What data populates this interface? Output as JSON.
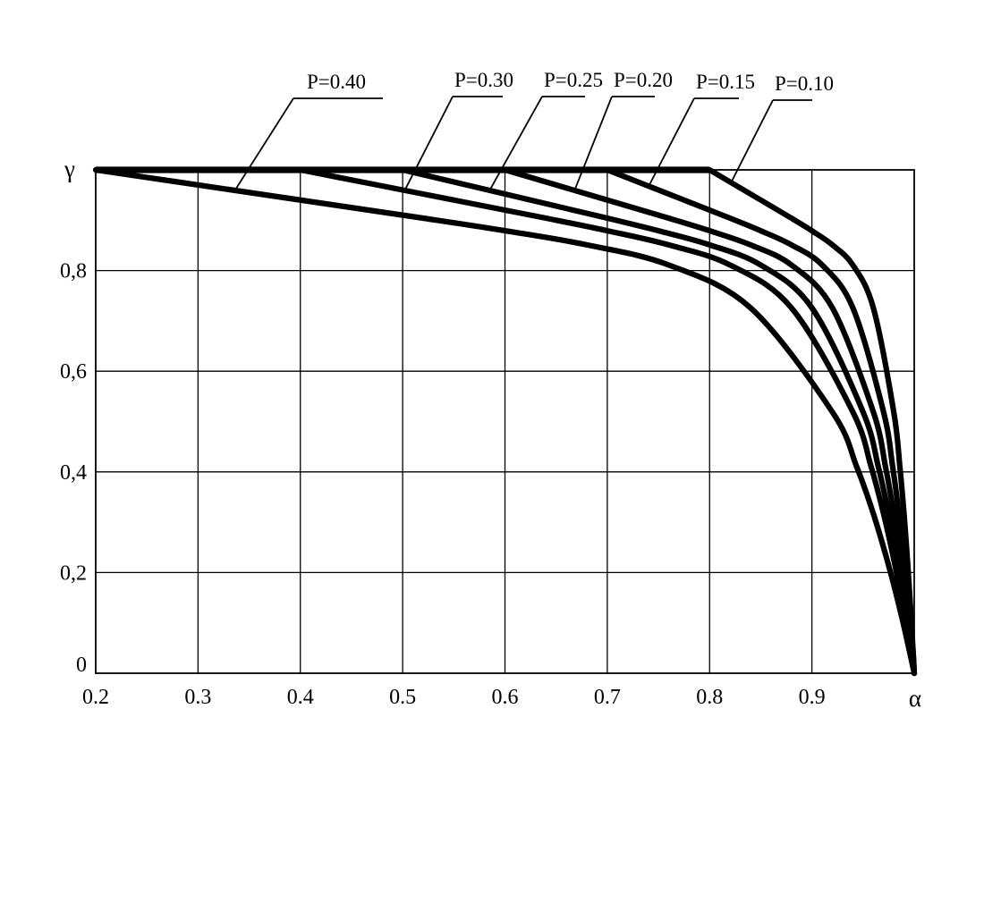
{
  "figure": {
    "background": "#ffffff",
    "ink": "#000000",
    "title": ""
  },
  "axes": {
    "x": {
      "label": "α",
      "min": 0.2,
      "max": 1.0,
      "tick_labels": [
        "0.2",
        "0.3",
        "0.4",
        "0.5",
        "0.6",
        "0.7",
        "0.8",
        "0.9"
      ],
      "tick_values": [
        0.2,
        0.3,
        0.4,
        0.5,
        0.6,
        0.7,
        0.8,
        0.9
      ]
    },
    "y": {
      "label": "γ",
      "min": 0,
      "max": 1.0,
      "tick_labels": [
        "0",
        "0,2",
        "0,4",
        "0,6",
        "0,8"
      ],
      "tick_values": [
        0,
        0.2,
        0.4,
        0.6,
        0.8
      ],
      "top_axis_letter_at_value": 1.0
    }
  },
  "chart_data": {
    "type": "line",
    "title": "",
    "xlabel": "α",
    "ylabel": "γ",
    "xlim": [
      0.2,
      1.0
    ],
    "ylim": [
      0,
      1.0
    ],
    "grid": true,
    "x_gridlines": [
      0.3,
      0.4,
      0.5,
      0.6,
      0.7,
      0.8,
      0.9
    ],
    "y_gridlines": [
      0.2,
      0.4,
      0.6,
      0.8
    ],
    "legend_position": "labels-with-leader-lines-above-plot",
    "plateau": {
      "gamma": 1.0,
      "from_alpha": 0.2,
      "to_alpha": 0.8,
      "note": "thick horizontal segment at gamma=1; each curve leaves it at alpha = 1 - 2P and falls to gamma=0 at alpha=1.0"
    },
    "series": [
      {
        "name": "P=0.40",
        "P": 0.4,
        "departure_alpha": 0.2,
        "points": [
          [
            0.2,
            1.0
          ],
          [
            0.28,
            0.976
          ],
          [
            0.36,
            0.952
          ],
          [
            0.44,
            0.928
          ],
          [
            0.52,
            0.904
          ],
          [
            0.6,
            0.879
          ],
          [
            0.68,
            0.851
          ],
          [
            0.76,
            0.811
          ],
          [
            0.84,
            0.726
          ],
          [
            0.92,
            0.519
          ],
          [
            0.944,
            0.409
          ],
          [
            0.96,
            0.317
          ],
          [
            0.976,
            0.207
          ],
          [
            0.988,
            0.11
          ],
          [
            0.996,
            0.038
          ],
          [
            1.0,
            0.0
          ]
        ]
      },
      {
        "name": "P=0.30",
        "P": 0.3,
        "departure_alpha": 0.4,
        "points": [
          [
            0.4,
            1.0
          ],
          [
            0.46,
            0.976
          ],
          [
            0.52,
            0.952
          ],
          [
            0.58,
            0.928
          ],
          [
            0.64,
            0.904
          ],
          [
            0.7,
            0.879
          ],
          [
            0.76,
            0.851
          ],
          [
            0.82,
            0.811
          ],
          [
            0.88,
            0.726
          ],
          [
            0.94,
            0.519
          ],
          [
            0.958,
            0.409
          ],
          [
            0.97,
            0.317
          ],
          [
            0.982,
            0.207
          ],
          [
            0.991,
            0.11
          ],
          [
            0.997,
            0.038
          ],
          [
            1.0,
            0.0
          ]
        ]
      },
      {
        "name": "P=0.25",
        "P": 0.25,
        "departure_alpha": 0.5,
        "points": [
          [
            0.5,
            1.0
          ],
          [
            0.55,
            0.976
          ],
          [
            0.6,
            0.952
          ],
          [
            0.65,
            0.928
          ],
          [
            0.7,
            0.904
          ],
          [
            0.75,
            0.879
          ],
          [
            0.8,
            0.851
          ],
          [
            0.85,
            0.811
          ],
          [
            0.9,
            0.726
          ],
          [
            0.95,
            0.519
          ],
          [
            0.965,
            0.409
          ],
          [
            0.975,
            0.317
          ],
          [
            0.985,
            0.207
          ],
          [
            0.993,
            0.11
          ],
          [
            0.998,
            0.038
          ],
          [
            1.0,
            0.0
          ]
        ]
      },
      {
        "name": "P=0.20",
        "P": 0.2,
        "departure_alpha": 0.6,
        "points": [
          [
            0.6,
            1.0
          ],
          [
            0.64,
            0.976
          ],
          [
            0.68,
            0.952
          ],
          [
            0.72,
            0.928
          ],
          [
            0.76,
            0.904
          ],
          [
            0.8,
            0.879
          ],
          [
            0.84,
            0.851
          ],
          [
            0.88,
            0.811
          ],
          [
            0.92,
            0.726
          ],
          [
            0.96,
            0.519
          ],
          [
            0.972,
            0.409
          ],
          [
            0.98,
            0.317
          ],
          [
            0.988,
            0.207
          ],
          [
            0.994,
            0.11
          ],
          [
            0.998,
            0.038
          ],
          [
            1.0,
            0.0
          ]
        ]
      },
      {
        "name": "P=0.15",
        "P": 0.15,
        "departure_alpha": 0.7,
        "points": [
          [
            0.7,
            1.0
          ],
          [
            0.73,
            0.976
          ],
          [
            0.76,
            0.952
          ],
          [
            0.79,
            0.928
          ],
          [
            0.82,
            0.904
          ],
          [
            0.85,
            0.879
          ],
          [
            0.88,
            0.851
          ],
          [
            0.91,
            0.811
          ],
          [
            0.94,
            0.726
          ],
          [
            0.97,
            0.519
          ],
          [
            0.979,
            0.409
          ],
          [
            0.985,
            0.317
          ],
          [
            0.991,
            0.207
          ],
          [
            0.996,
            0.11
          ],
          [
            0.999,
            0.038
          ],
          [
            1.0,
            0.0
          ]
        ]
      },
      {
        "name": "P=0.10",
        "P": 0.1,
        "departure_alpha": 0.8,
        "points": [
          [
            0.8,
            1.0
          ],
          [
            0.82,
            0.976
          ],
          [
            0.84,
            0.952
          ],
          [
            0.86,
            0.928
          ],
          [
            0.88,
            0.904
          ],
          [
            0.9,
            0.879
          ],
          [
            0.92,
            0.851
          ],
          [
            0.94,
            0.811
          ],
          [
            0.96,
            0.726
          ],
          [
            0.98,
            0.519
          ],
          [
            0.986,
            0.409
          ],
          [
            0.99,
            0.317
          ],
          [
            0.994,
            0.207
          ],
          [
            0.997,
            0.11
          ],
          [
            0.999,
            0.038
          ],
          [
            1.0,
            0.0
          ]
        ]
      }
    ]
  },
  "curve_labels": [
    {
      "text": "P=0.40",
      "series": "P=0.40"
    },
    {
      "text": "P=0.30",
      "series": "P=0.30"
    },
    {
      "text": "P=0.25",
      "series": "P=0.25"
    },
    {
      "text": "P=0.20",
      "series": "P=0.20"
    },
    {
      "text": "P=0.15",
      "series": "P=0.15"
    },
    {
      "text": "P=0.10",
      "series": "P=0.10"
    }
  ]
}
